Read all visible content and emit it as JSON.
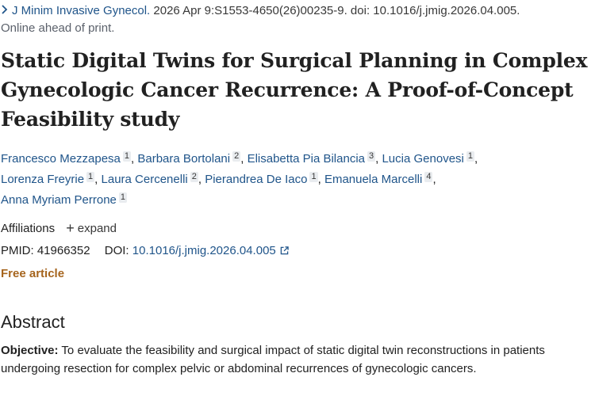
{
  "citation": {
    "journal": "J Minim Invasive Gynecol.",
    "details": " 2026 Apr 9:S1553-4650(26)00235-9. doi: 10.1016/j.jmig.2026.04.005.",
    "status": "Online ahead of print."
  },
  "title": "Static Digital Twins for Surgical Planning in Complex Gynecologic Cancer Recurrence: A Proof-of-Concept Feasibility study",
  "authors": [
    {
      "name": "Francesco Mezzapesa",
      "aff": "1"
    },
    {
      "name": "Barbara Bortolani",
      "aff": "2"
    },
    {
      "name": "Elisabetta Pia Bilancia",
      "aff": "3"
    },
    {
      "name": "Lucia Genovesi",
      "aff": "1"
    },
    {
      "name": "Lorenza Freyrie",
      "aff": "1"
    },
    {
      "name": "Laura Cercenelli",
      "aff": "2"
    },
    {
      "name": "Pierandrea De Iaco",
      "aff": "1"
    },
    {
      "name": "Emanuela Marcelli",
      "aff": "4"
    },
    {
      "name": "Anna Myriam Perrone",
      "aff": "1"
    }
  ],
  "author_separator": ",",
  "affiliations": {
    "label": "Affiliations",
    "expand_label": "expand"
  },
  "identifiers": {
    "pmid_label": "PMID:",
    "pmid": "41966352",
    "doi_label": "DOI:",
    "doi": "10.1016/j.jmig.2026.04.005"
  },
  "free_article": "Free article",
  "abstract": {
    "heading": "Abstract",
    "objective_label": "Objective:",
    "objective_text": " To evaluate the feasibility and surgical impact of static digital twin reconstructions in patients undergoing resection for complex pelvic or abdominal recurrences of gynecologic cancers."
  },
  "colors": {
    "link": "#20558a",
    "free_article": "#a6651e",
    "text": "#212121"
  }
}
